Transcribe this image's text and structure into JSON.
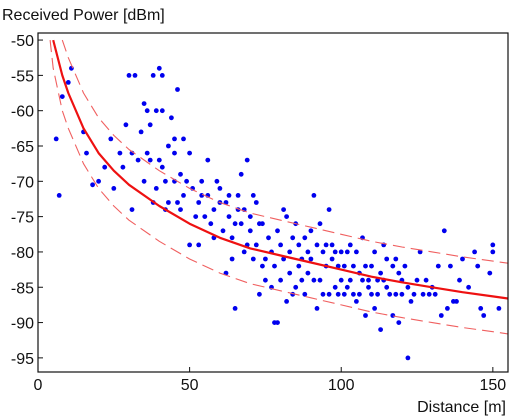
{
  "chart_data": {
    "type": "scatter",
    "title": "",
    "xlabel": "Distance [m]",
    "ylabel": "Received Power [dBm]",
    "xlim": [
      0,
      155
    ],
    "ylim": [
      -97,
      -49
    ],
    "x_ticks": [
      0,
      50,
      100,
      150
    ],
    "y_ticks": [
      -50,
      -55,
      -60,
      -65,
      -70,
      -75,
      -80,
      -85,
      -90,
      -95
    ],
    "x_tick_labels": [
      "0",
      "50",
      "100",
      "150"
    ],
    "y_tick_labels": [
      "-50",
      "-55",
      "-60",
      "-65",
      "-70",
      "-75",
      "-80",
      "-85",
      "-90",
      "-95"
    ],
    "grid": false,
    "legend": "none",
    "colors": {
      "points": "#0000ee",
      "fit": "#ee1111",
      "band": "#f06060"
    },
    "fit_curve": {
      "x": [
        5,
        8,
        10,
        15,
        20,
        25,
        30,
        40,
        50,
        60,
        70,
        80,
        90,
        100,
        110,
        120,
        130,
        140,
        150,
        155
      ],
      "y": [
        -50,
        -55,
        -57.5,
        -62.5,
        -66,
        -68.5,
        -70.5,
        -73.5,
        -76,
        -78,
        -79.5,
        -80.5,
        -81.5,
        -82.5,
        -83.5,
        -84.3,
        -85,
        -85.7,
        -86.3,
        -86.6
      ]
    },
    "upper_band": {
      "x": [
        8,
        10,
        15,
        20,
        25,
        30,
        40,
        50,
        60,
        70,
        80,
        90,
        100,
        110,
        120,
        130,
        140,
        150,
        155
      ],
      "y": [
        -50,
        -52.5,
        -57.5,
        -61,
        -63.5,
        -65.5,
        -68.5,
        -71,
        -73,
        -74.5,
        -75.5,
        -76.5,
        -77.5,
        -78.5,
        -79.3,
        -80,
        -80.7,
        -81.3,
        -81.6
      ]
    },
    "lower_band": {
      "x": [
        4,
        5,
        8,
        10,
        15,
        20,
        25,
        30,
        40,
        50,
        60,
        70,
        80,
        90,
        100,
        110,
        120,
        130,
        140,
        150,
        155
      ],
      "y": [
        -50,
        -54,
        -60,
        -62.5,
        -67.5,
        -71,
        -73.5,
        -75.5,
        -78.5,
        -81,
        -83,
        -84.5,
        -85.5,
        -86.5,
        -87.5,
        -88.5,
        -89.3,
        -90,
        -90.7,
        -91.3,
        -91.6
      ]
    },
    "points": [
      [
        6,
        -64
      ],
      [
        7,
        -72
      ],
      [
        8,
        -58
      ],
      [
        10,
        -56
      ],
      [
        11,
        -54
      ],
      [
        15,
        -63
      ],
      [
        16,
        -66
      ],
      [
        18,
        -70.5
      ],
      [
        20,
        -70
      ],
      [
        22,
        -68
      ],
      [
        24,
        -64
      ],
      [
        25,
        -71
      ],
      [
        27,
        -66
      ],
      [
        28,
        -68
      ],
      [
        29,
        -62
      ],
      [
        30,
        -55
      ],
      [
        31,
        -66
      ],
      [
        31,
        -74
      ],
      [
        32,
        -55
      ],
      [
        33,
        -67
      ],
      [
        34,
        -63
      ],
      [
        35,
        -59
      ],
      [
        35,
        -70
      ],
      [
        36,
        -60
      ],
      [
        36,
        -66
      ],
      [
        37,
        -62
      ],
      [
        37,
        -67
      ],
      [
        38,
        -73
      ],
      [
        38,
        -55
      ],
      [
        39,
        -60
      ],
      [
        39,
        -71
      ],
      [
        40,
        -54
      ],
      [
        40,
        -67
      ],
      [
        41,
        -55
      ],
      [
        41,
        -60
      ],
      [
        41,
        -68
      ],
      [
        42,
        -74
      ],
      [
        42,
        -70
      ],
      [
        43,
        -65
      ],
      [
        43,
        -73
      ],
      [
        44,
        -61
      ],
      [
        45,
        -66
      ],
      [
        45,
        -70
      ],
      [
        45,
        -64
      ],
      [
        46,
        -73
      ],
      [
        46,
        -57
      ],
      [
        47,
        -74
      ],
      [
        47,
        -69
      ],
      [
        48,
        -64
      ],
      [
        48,
        -72
      ],
      [
        49,
        -70
      ],
      [
        50,
        -79
      ],
      [
        50,
        -66
      ],
      [
        51,
        -71
      ],
      [
        52,
        -75
      ],
      [
        53,
        -73
      ],
      [
        53,
        -79
      ],
      [
        54,
        -72
      ],
      [
        54,
        -70
      ],
      [
        55,
        -75
      ],
      [
        56,
        -72
      ],
      [
        56,
        -67
      ],
      [
        57,
        -76
      ],
      [
        58,
        -74
      ],
      [
        58,
        -78
      ],
      [
        59,
        -70
      ],
      [
        60,
        -73
      ],
      [
        60,
        -71
      ],
      [
        61,
        -77
      ],
      [
        62,
        -73
      ],
      [
        62,
        -83
      ],
      [
        63,
        -75
      ],
      [
        63,
        -72
      ],
      [
        64,
        -78
      ],
      [
        64,
        -81
      ],
      [
        65,
        -76
      ],
      [
        65,
        -88
      ],
      [
        66,
        -72
      ],
      [
        66,
        -74
      ],
      [
        67,
        -76
      ],
      [
        67,
        -69
      ],
      [
        68,
        -80
      ],
      [
        68,
        -74
      ],
      [
        69,
        -67
      ],
      [
        69,
        -79
      ],
      [
        70,
        -75
      ],
      [
        70,
        -77
      ],
      [
        71,
        -72
      ],
      [
        71,
        -81
      ],
      [
        72,
        -79
      ],
      [
        72,
        -73
      ],
      [
        73,
        -76
      ],
      [
        73,
        -86
      ],
      [
        74,
        -82
      ],
      [
        74,
        -76
      ],
      [
        75,
        -84
      ],
      [
        75,
        -81
      ],
      [
        76,
        -78
      ],
      [
        77,
        -85
      ],
      [
        77,
        -80
      ],
      [
        78,
        -90
      ],
      [
        78,
        -82
      ],
      [
        79,
        -77
      ],
      [
        79,
        -90
      ],
      [
        80,
        -84
      ],
      [
        80,
        -79
      ],
      [
        81,
        -81
      ],
      [
        81,
        -74
      ],
      [
        82,
        -87
      ],
      [
        82,
        -75
      ],
      [
        83,
        -80
      ],
      [
        83,
        -83
      ],
      [
        84,
        -86
      ],
      [
        84,
        -78
      ],
      [
        85,
        -85
      ],
      [
        85,
        -76
      ],
      [
        86,
        -82
      ],
      [
        86,
        -79
      ],
      [
        87,
        -84
      ],
      [
        87,
        -81
      ],
      [
        88,
        -78
      ],
      [
        88,
        -86
      ],
      [
        89,
        -80
      ],
      [
        89,
        -83
      ],
      [
        90,
        -81
      ],
      [
        90,
        -77
      ],
      [
        91,
        -84
      ],
      [
        91,
        -72
      ],
      [
        92,
        -79
      ],
      [
        92,
        -88
      ],
      [
        93,
        -84
      ],
      [
        93,
        -76
      ],
      [
        94,
        -80
      ],
      [
        94,
        -86
      ],
      [
        95,
        -82
      ],
      [
        95,
        -79
      ],
      [
        96,
        -74
      ],
      [
        96,
        -86
      ],
      [
        97,
        -81
      ],
      [
        97,
        -79
      ],
      [
        98,
        -85
      ],
      [
        98,
        -80
      ],
      [
        99,
        -82
      ],
      [
        99,
        -86
      ],
      [
        100,
        -80
      ],
      [
        100,
        -84
      ],
      [
        101,
        -86
      ],
      [
        101,
        -82
      ],
      [
        102,
        -80
      ],
      [
        102,
        -85
      ],
      [
        103,
        -79
      ],
      [
        103,
        -84
      ],
      [
        104,
        -86
      ],
      [
        104,
        -82
      ],
      [
        105,
        -87
      ],
      [
        105,
        -80
      ],
      [
        106,
        -83
      ],
      [
        106,
        -86
      ],
      [
        107,
        -84
      ],
      [
        107,
        -78
      ],
      [
        108,
        -89
      ],
      [
        108,
        -82
      ],
      [
        109,
        -84
      ],
      [
        109,
        -85
      ],
      [
        110,
        -86
      ],
      [
        110,
        -82
      ],
      [
        111,
        -88
      ],
      [
        111,
        -80
      ],
      [
        112,
        -86
      ],
      [
        112,
        -84
      ],
      [
        113,
        -83
      ],
      [
        113,
        -91
      ],
      [
        114,
        -84
      ],
      [
        114,
        -79
      ],
      [
        115,
        -85
      ],
      [
        115,
        -81
      ],
      [
        116,
        -86
      ],
      [
        117,
        -82
      ],
      [
        117,
        -89
      ],
      [
        118,
        -86
      ],
      [
        118,
        -81
      ],
      [
        119,
        -83
      ],
      [
        119,
        -90
      ],
      [
        120,
        -86
      ],
      [
        120,
        -84
      ],
      [
        121,
        -82
      ],
      [
        122,
        -95
      ],
      [
        122,
        -85
      ],
      [
        123,
        -87
      ],
      [
        124,
        -86
      ],
      [
        125,
        -84
      ],
      [
        126,
        -80
      ],
      [
        127,
        -86
      ],
      [
        128,
        -84
      ],
      [
        129,
        -86
      ],
      [
        130,
        -85
      ],
      [
        131,
        -86
      ],
      [
        132,
        -82
      ],
      [
        133,
        -89
      ],
      [
        134,
        -77
      ],
      [
        135,
        -88
      ],
      [
        136,
        -82
      ],
      [
        137,
        -87
      ],
      [
        138,
        -87
      ],
      [
        139,
        -84
      ],
      [
        140,
        -81
      ],
      [
        142,
        -85
      ],
      [
        144,
        -80
      ],
      [
        145,
        -82
      ],
      [
        146,
        -88
      ],
      [
        147,
        -89
      ],
      [
        149,
        -83
      ],
      [
        150,
        -80
      ],
      [
        150,
        -79
      ],
      [
        152,
        -88
      ]
    ]
  }
}
